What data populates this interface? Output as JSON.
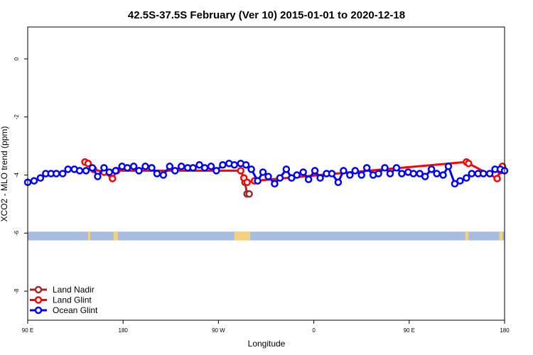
{
  "chart_data": {
    "type": "line",
    "title": "42.5S-37.5S February (Ver 10)   2015-01-01 to 2020-12-18",
    "xlabel": "Longitude",
    "ylabel": "XCO2 - MLO trend (ppm)",
    "xlim": [
      90,
      540
    ],
    "ylim": [
      -9,
      1.1
    ],
    "x_ticks": [
      {
        "value": 90,
        "label": "90 E"
      },
      {
        "value": 180,
        "label": "180"
      },
      {
        "value": 270,
        "label": "90 W"
      },
      {
        "value": 360,
        "label": "0"
      },
      {
        "value": 450,
        "label": "90 E"
      },
      {
        "value": 540,
        "label": "180"
      }
    ],
    "y_ticks": [
      {
        "value": 0,
        "label": "0"
      },
      {
        "value": -2,
        "label": "-2"
      },
      {
        "value": -4,
        "label": "-4"
      },
      {
        "value": -6,
        "label": "-6"
      },
      {
        "value": -8,
        "label": "-8"
      }
    ],
    "legend_position": "bottom-left",
    "series": [
      {
        "name": "Land Nadir",
        "color": "#9b2c2c",
        "x": [
          295,
          297,
          299
        ],
        "y": [
          -4.25,
          -4.65,
          -4.65
        ]
      },
      {
        "name": "Land Glint",
        "color": "#ff0000",
        "x": [
          144,
          147,
          152,
          162,
          170,
          174,
          291,
          294,
          297,
          304,
          504,
          506,
          533,
          536,
          538
        ],
        "y": [
          -3.55,
          -3.6,
          -3.8,
          -3.9,
          -4.12,
          -3.85,
          -3.85,
          -4.1,
          -4.25,
          -4.2,
          -3.55,
          -3.6,
          -4.12,
          -3.85,
          -3.7
        ]
      },
      {
        "name": "Ocean Glint",
        "color": "#0000ff",
        "x": [
          90,
          96,
          102,
          107,
          112,
          117,
          123,
          128,
          134,
          139,
          145,
          151,
          156,
          162,
          167,
          173,
          179,
          184,
          190,
          195,
          201,
          207,
          212,
          218,
          224,
          229,
          235,
          241,
          246,
          252,
          257,
          263,
          268,
          274,
          280,
          285,
          291,
          296,
          301,
          307,
          312,
          317,
          323,
          328,
          334,
          339,
          344,
          350,
          355,
          361,
          366,
          372,
          377,
          383,
          388,
          394,
          399,
          405,
          410,
          416,
          421,
          427,
          432,
          438,
          443,
          449,
          454,
          460,
          465,
          471,
          476,
          482,
          487,
          493,
          498,
          504,
          509,
          515,
          520,
          526,
          531,
          536,
          541
        ],
        "y": [
          -4.25,
          -4.2,
          -4.1,
          -3.95,
          -3.95,
          -3.95,
          -3.95,
          -3.8,
          -3.8,
          -3.85,
          -3.85,
          -3.75,
          -4.05,
          -3.75,
          -3.9,
          -3.85,
          -3.7,
          -3.75,
          -3.7,
          -3.85,
          -3.7,
          -3.75,
          -3.95,
          -4.0,
          -3.7,
          -3.85,
          -3.7,
          -3.75,
          -3.75,
          -3.65,
          -3.75,
          -3.7,
          -3.85,
          -3.65,
          -3.6,
          -3.65,
          -3.6,
          -3.65,
          -3.8,
          -4.2,
          -3.9,
          -4.05,
          -4.3,
          -4.1,
          -3.8,
          -4.1,
          -4.0,
          -3.9,
          -4.15,
          -3.85,
          -4.1,
          -3.95,
          -3.95,
          -4.25,
          -3.85,
          -4.0,
          -3.85,
          -4.0,
          -3.75,
          -4.0,
          -3.95,
          -3.75,
          -3.95,
          -3.75,
          -3.95,
          -3.9,
          -3.95,
          -3.95,
          -4.05,
          -3.8,
          -3.95,
          -4.0,
          -3.7,
          -4.3,
          -4.2,
          -4.1,
          -3.95,
          -3.95,
          -3.95,
          -3.95,
          -3.8,
          -3.8,
          -3.85
        ]
      }
    ],
    "surface_band": {
      "y_range": [
        -6.25,
        -5.95
      ],
      "ocean_color": "#a7bde0",
      "land_color": "#f5d27a",
      "land_x_ranges": [
        [
          147,
          149
        ],
        [
          171,
          175
        ],
        [
          285,
          300
        ],
        [
          503,
          506
        ],
        [
          535,
          538
        ]
      ]
    }
  }
}
